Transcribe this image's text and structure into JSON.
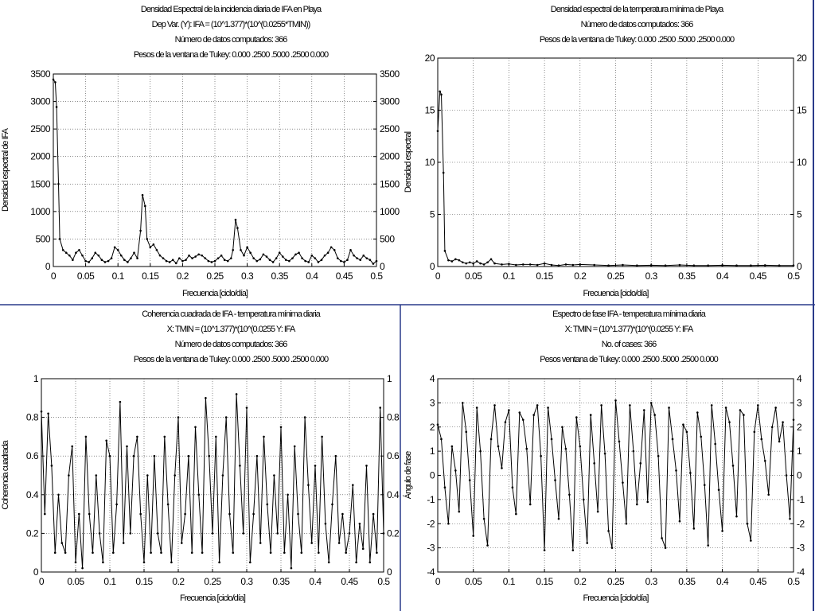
{
  "panels": [
    {
      "title_lines": [
        "Densidad Espectral de la incidencia diaria de IFA en Playa",
        "Dep Var. (Y): IFA = (10^1.377)*(10^(0.0255*TMIN))",
        "Número de datos computados: 366",
        "Pesos de la ventana de Tukey: 0.000 .2500 .5000 .2500 0.000"
      ],
      "xlabel": "Frecuencia [ciclo/día]",
      "ylabel": "Densidad espectral de IFA",
      "right_ylabel": ""
    },
    {
      "title_lines": [
        "Densidad espectral de la temperatura mínima de Playa",
        "Número de datos computados: 366",
        "Pesos de la ventana de Tukey: 0.000 .2500 .5000 .2500 0.000"
      ],
      "xlabel": "Frecuencia [ciclo/día]",
      "ylabel": "",
      "right_ylabel": "Densidad espectral"
    },
    {
      "title_lines": [
        "Coherencia cuadrada de IFA - temperatura mínima diaria",
        "X: TMIN = (10^1.377)*(10^(0.0255 Y: IFA",
        "Número de datos computados: 366",
        "Pesos de la ventana de Tukey: 0.000 .2500 .5000 .2500 0.000"
      ],
      "xlabel": "Frecuencia [ciclo/día]",
      "ylabel": "Coherencia cuadrada",
      "right_ylabel": ""
    },
    {
      "title_lines": [
        "Espectro de fase IFA - temperatura mínima diaria",
        "X: TMIN = (10^1.377)*(10^(0.0255 Y: IFA",
        "No. of cases: 366",
        "Pesos ventana de Tukey: 0.000 .2500 .5000 .2500 0.000"
      ],
      "xlabel": "Frecuencia [ciclo/día]",
      "ylabel": "Ángulo de fase",
      "right_ylabel": ""
    }
  ],
  "chart_data": [
    {
      "type": "line",
      "title": "Densidad Espectral de la incidencia diaria de IFA en Playa",
      "xlabel": "Frecuencia [ciclo/día]",
      "ylabel": "Densidad espectral de IFA",
      "xlim": [
        0,
        0.5
      ],
      "ylim": [
        0,
        3500
      ],
      "xticks": [
        0,
        0.05,
        0.1,
        0.15,
        0.2,
        0.25,
        0.3,
        0.35,
        0.4,
        0.45,
        0.5
      ],
      "xtick_labels": [
        "0",
        "0.05",
        "0.1",
        "0.15",
        "0.2",
        "0.25",
        "0.3",
        "0.35",
        "0.4",
        "0.45",
        "0.5"
      ],
      "yticks": [
        0,
        500,
        1000,
        1500,
        2000,
        2500,
        3000,
        3500
      ],
      "ytick_labels": [
        "0",
        "500",
        "1000",
        "1500",
        "2000",
        "2500",
        "3000",
        "3500"
      ],
      "grid": true,
      "x": [
        0,
        0.003,
        0.005,
        0.008,
        0.01,
        0.015,
        0.02,
        0.025,
        0.03,
        0.035,
        0.04,
        0.045,
        0.05,
        0.055,
        0.06,
        0.065,
        0.07,
        0.075,
        0.08,
        0.085,
        0.09,
        0.095,
        0.1,
        0.105,
        0.11,
        0.115,
        0.12,
        0.125,
        0.13,
        0.135,
        0.138,
        0.142,
        0.145,
        0.15,
        0.155,
        0.16,
        0.165,
        0.17,
        0.175,
        0.18,
        0.185,
        0.19,
        0.195,
        0.2,
        0.205,
        0.21,
        0.215,
        0.22,
        0.225,
        0.23,
        0.235,
        0.24,
        0.245,
        0.25,
        0.255,
        0.26,
        0.265,
        0.27,
        0.275,
        0.278,
        0.282,
        0.285,
        0.29,
        0.295,
        0.3,
        0.305,
        0.31,
        0.315,
        0.32,
        0.325,
        0.33,
        0.335,
        0.34,
        0.345,
        0.35,
        0.355,
        0.36,
        0.365,
        0.37,
        0.375,
        0.38,
        0.385,
        0.39,
        0.395,
        0.4,
        0.405,
        0.41,
        0.415,
        0.42,
        0.425,
        0.43,
        0.435,
        0.44,
        0.445,
        0.45,
        0.455,
        0.46,
        0.465,
        0.47,
        0.475,
        0.48,
        0.485,
        0.49,
        0.495,
        0.5
      ],
      "y": [
        3400,
        3350,
        2900,
        1500,
        500,
        300,
        250,
        200,
        120,
        250,
        300,
        200,
        100,
        80,
        150,
        250,
        200,
        120,
        80,
        100,
        150,
        350,
        300,
        200,
        120,
        80,
        150,
        250,
        150,
        650,
        1300,
        1100,
        500,
        350,
        400,
        300,
        200,
        150,
        100,
        80,
        120,
        60,
        150,
        100,
        120,
        200,
        150,
        180,
        220,
        200,
        150,
        100,
        80,
        100,
        150,
        200,
        120,
        100,
        150,
        300,
        850,
        700,
        300,
        200,
        350,
        250,
        150,
        100,
        130,
        220,
        180,
        120,
        80,
        150,
        250,
        180,
        120,
        100,
        150,
        220,
        250,
        150,
        100,
        80,
        200,
        150,
        80,
        120,
        200,
        250,
        350,
        300,
        150,
        100,
        80,
        120,
        300,
        200,
        150,
        120,
        200,
        150,
        120,
        50,
        100
      ]
    },
    {
      "type": "line",
      "title": "Densidad espectral de la temperatura mínima de Playa",
      "xlabel": "Frecuencia [ciclo/día]",
      "ylabel": "Densidad espectral",
      "xlim": [
        0,
        0.5
      ],
      "ylim": [
        0,
        20
      ],
      "xticks": [
        0,
        0.05,
        0.1,
        0.15,
        0.2,
        0.25,
        0.3,
        0.35,
        0.4,
        0.45,
        0.5
      ],
      "xtick_labels": [
        "0",
        "0.05",
        "0.1",
        "0.15",
        "0.2",
        "0.25",
        "0.3",
        "0.35",
        "0.4",
        "0.45",
        "0.5"
      ],
      "yticks": [
        0,
        5,
        10,
        15,
        20
      ],
      "ytick_labels": [
        "0",
        "5",
        "10",
        "15",
        "20"
      ],
      "grid": true,
      "x": [
        0,
        0.003,
        0.005,
        0.008,
        0.01,
        0.015,
        0.02,
        0.025,
        0.03,
        0.035,
        0.04,
        0.045,
        0.05,
        0.055,
        0.06,
        0.065,
        0.07,
        0.075,
        0.08,
        0.09,
        0.1,
        0.11,
        0.12,
        0.13,
        0.14,
        0.15,
        0.16,
        0.17,
        0.18,
        0.19,
        0.2,
        0.22,
        0.24,
        0.26,
        0.28,
        0.3,
        0.32,
        0.34,
        0.36,
        0.38,
        0.4,
        0.42,
        0.44,
        0.46,
        0.48,
        0.5
      ],
      "y": [
        13,
        16.8,
        16.5,
        9,
        1.5,
        0.6,
        0.5,
        0.7,
        0.6,
        0.4,
        0.3,
        0.4,
        0.3,
        0.5,
        0.3,
        0.2,
        0.4,
        0.7,
        0.3,
        0.2,
        0.25,
        0.15,
        0.2,
        0.2,
        0.15,
        0.3,
        0.15,
        0.1,
        0.2,
        0.15,
        0.2,
        0.15,
        0.1,
        0.15,
        0.1,
        0.12,
        0.1,
        0.15,
        0.1,
        0.1,
        0.12,
        0.1,
        0.1,
        0.12,
        0.1,
        0.1
      ]
    },
    {
      "type": "line",
      "title": "Coherencia cuadrada de IFA - temperatura mínima diaria",
      "xlabel": "Frecuencia [ciclo/día]",
      "ylabel": "Coherencia cuadrada",
      "xlim": [
        0,
        0.5
      ],
      "ylim": [
        0,
        1
      ],
      "xticks": [
        0,
        0.05,
        0.1,
        0.15,
        0.2,
        0.25,
        0.3,
        0.35,
        0.4,
        0.45,
        0.5
      ],
      "xtick_labels": [
        "0",
        "0.05",
        "0.1",
        "0.15",
        "0.2",
        "0.25",
        "0.3",
        "0.35",
        "0.4",
        "0.45",
        "0.5"
      ],
      "yticks": [
        0,
        0.2,
        0.4,
        0.6,
        0.8,
        1
      ],
      "ytick_labels": [
        "0",
        "0.2",
        "0.4",
        "0.6",
        "0.8",
        "1"
      ],
      "grid": true,
      "x": [
        0,
        0.005,
        0.01,
        0.015,
        0.02,
        0.025,
        0.03,
        0.035,
        0.04,
        0.045,
        0.05,
        0.055,
        0.06,
        0.065,
        0.07,
        0.075,
        0.08,
        0.085,
        0.09,
        0.095,
        0.1,
        0.105,
        0.11,
        0.115,
        0.12,
        0.125,
        0.13,
        0.135,
        0.14,
        0.145,
        0.15,
        0.155,
        0.16,
        0.165,
        0.17,
        0.175,
        0.18,
        0.185,
        0.19,
        0.195,
        0.2,
        0.205,
        0.21,
        0.215,
        0.22,
        0.225,
        0.23,
        0.235,
        0.24,
        0.245,
        0.25,
        0.255,
        0.26,
        0.265,
        0.27,
        0.275,
        0.28,
        0.285,
        0.29,
        0.295,
        0.3,
        0.305,
        0.31,
        0.315,
        0.32,
        0.325,
        0.33,
        0.335,
        0.34,
        0.345,
        0.35,
        0.355,
        0.36,
        0.365,
        0.37,
        0.375,
        0.38,
        0.385,
        0.39,
        0.395,
        0.4,
        0.405,
        0.41,
        0.415,
        0.42,
        0.425,
        0.43,
        0.435,
        0.44,
        0.445,
        0.45,
        0.455,
        0.46,
        0.465,
        0.47,
        0.475,
        0.48,
        0.485,
        0.49,
        0.495,
        0.5
      ],
      "y": [
        0.83,
        0.3,
        0.82,
        0.55,
        0.1,
        0.4,
        0.15,
        0.1,
        0.5,
        0.65,
        0.05,
        0.3,
        0.02,
        0.7,
        0.3,
        0.1,
        0.5,
        0.2,
        0.05,
        0.68,
        0.6,
        0.1,
        0.35,
        0.88,
        0.15,
        0.65,
        0.2,
        0.6,
        0.7,
        0.3,
        0.05,
        0.5,
        0.1,
        0.6,
        0.2,
        0.1,
        0.7,
        0.35,
        0.05,
        0.5,
        0.8,
        0.15,
        0.3,
        0.6,
        0.1,
        0.75,
        0.4,
        0.1,
        0.9,
        0.6,
        0.2,
        0.7,
        0.05,
        0.5,
        0.8,
        0.3,
        0.1,
        0.92,
        0.55,
        0.2,
        0.85,
        0.05,
        0.3,
        0.6,
        0.15,
        0.7,
        0.35,
        0.1,
        0.5,
        0.2,
        0.75,
        0.1,
        0.4,
        0.02,
        0.65,
        0.3,
        0.1,
        0.8,
        0.45,
        0.15,
        0.55,
        0.1,
        0.7,
        0.25,
        0.05,
        0.35,
        0.6,
        0.15,
        0.3,
        0.1,
        0.2,
        0.45,
        0.05,
        0.25,
        0.12,
        0.55,
        0.05,
        0.3,
        0.1,
        0.85,
        0.2
      ]
    },
    {
      "type": "line",
      "title": "Espectro de fase IFA - temperatura mínima diaria",
      "xlabel": "Frecuencia [ciclo/día]",
      "ylabel": "Ángulo de fase",
      "xlim": [
        0,
        0.5
      ],
      "ylim": [
        -4,
        4
      ],
      "xticks": [
        0,
        0.05,
        0.1,
        0.15,
        0.2,
        0.25,
        0.3,
        0.35,
        0.4,
        0.45,
        0.5
      ],
      "xtick_labels": [
        "0",
        "0.05",
        "0.1",
        "0.15",
        "0.2",
        "0.25",
        "0.3",
        "0.35",
        "0.4",
        "0.45",
        "0.5"
      ],
      "yticks": [
        -4,
        -3,
        -2,
        -1,
        0,
        1,
        2,
        3,
        4
      ],
      "ytick_labels": [
        "-4",
        "-3",
        "-2",
        "-1",
        "0",
        "1",
        "2",
        "3",
        "4"
      ],
      "grid": true,
      "x": [
        0,
        0.005,
        0.01,
        0.015,
        0.02,
        0.025,
        0.03,
        0.035,
        0.04,
        0.045,
        0.05,
        0.055,
        0.06,
        0.065,
        0.07,
        0.075,
        0.08,
        0.085,
        0.09,
        0.095,
        0.1,
        0.105,
        0.11,
        0.115,
        0.12,
        0.125,
        0.13,
        0.135,
        0.14,
        0.145,
        0.15,
        0.155,
        0.16,
        0.165,
        0.17,
        0.175,
        0.18,
        0.185,
        0.19,
        0.195,
        0.2,
        0.205,
        0.21,
        0.215,
        0.22,
        0.225,
        0.23,
        0.235,
        0.24,
        0.245,
        0.25,
        0.255,
        0.26,
        0.265,
        0.27,
        0.275,
        0.28,
        0.285,
        0.29,
        0.295,
        0.3,
        0.305,
        0.31,
        0.315,
        0.32,
        0.325,
        0.33,
        0.335,
        0.34,
        0.345,
        0.35,
        0.355,
        0.36,
        0.365,
        0.37,
        0.375,
        0.38,
        0.385,
        0.39,
        0.395,
        0.4,
        0.405,
        0.41,
        0.415,
        0.42,
        0.425,
        0.43,
        0.435,
        0.44,
        0.445,
        0.45,
        0.455,
        0.46,
        0.465,
        0.47,
        0.475,
        0.48,
        0.485,
        0.49,
        0.495,
        0.5
      ],
      "y": [
        2.1,
        1.5,
        -0.5,
        -2.0,
        1.2,
        0.2,
        -1.5,
        3.0,
        1.8,
        -0.2,
        -2.5,
        2.8,
        1.0,
        -1.8,
        -2.9,
        1.5,
        2.9,
        1.2,
        0.3,
        2.2,
        2.7,
        -0.5,
        -1.6,
        2.6,
        2.3,
        1.1,
        -1.2,
        2.5,
        2.9,
        0.8,
        -3.1,
        2.8,
        1.5,
        -0.2,
        -1.8,
        2.0,
        1.1,
        -0.8,
        -3.1,
        2.4,
        1.2,
        -1.0,
        -2.8,
        2.5,
        0.5,
        -1.5,
        2.9,
        0.9,
        -2.3,
        -3.0,
        3.1,
        1.4,
        -0.3,
        -2.0,
        2.9,
        1.0,
        -1.2,
        0.5,
        2.7,
        -1.1,
        3.0,
        2.5,
        0.8,
        -2.6,
        -3.0,
        2.8,
        1.5,
        0.2,
        -1.9,
        2.1,
        1.8,
        0.1,
        -2.2,
        2.6,
        1.6,
        -0.4,
        -2.9,
        2.9,
        1.3,
        -0.6,
        -2.3,
        2.8,
        2.2,
        0.4,
        -1.7,
        2.7,
        2.5,
        -2.0,
        -2.7,
        1.8,
        2.9,
        1.5,
        0.6,
        -0.8,
        2.0,
        2.8,
        1.4,
        2.2,
        0.0,
        -1.8,
        2.3
      ]
    }
  ]
}
